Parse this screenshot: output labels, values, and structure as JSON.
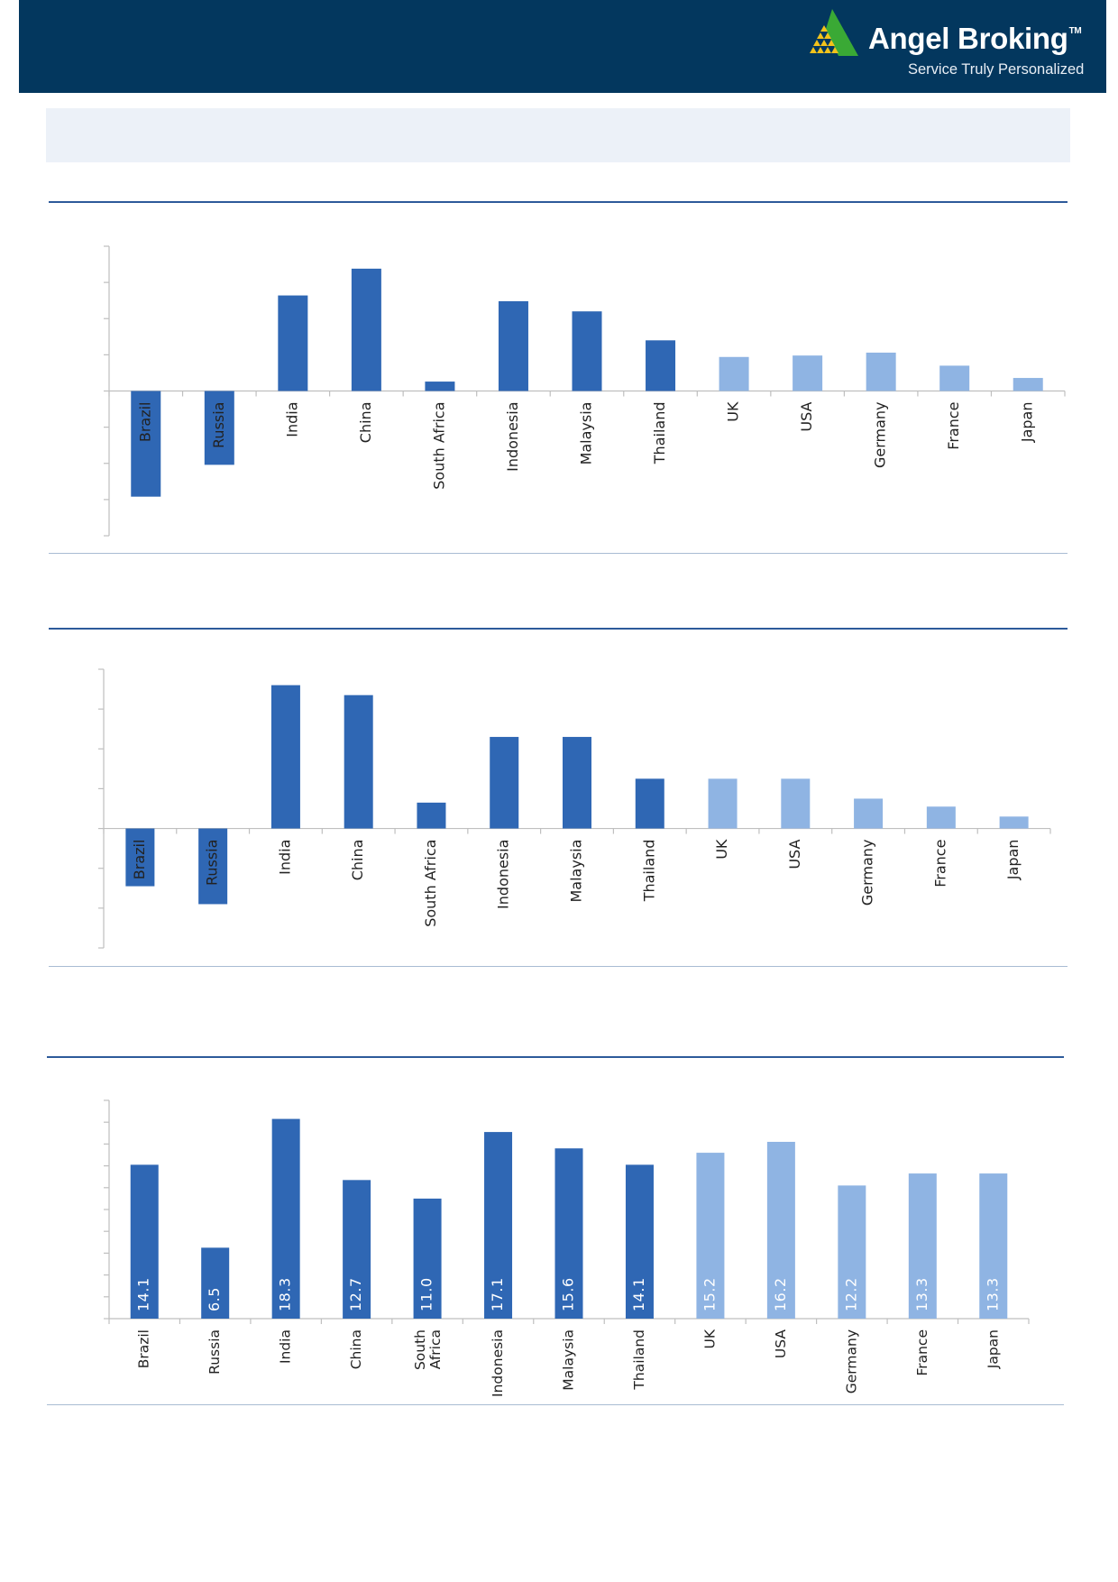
{
  "header": {
    "brand_name": "Angel Broking",
    "trademark": "TM",
    "tagline": "Service Truly Personalized",
    "background_color": "#03375e",
    "logo_icon": "pyramid-triangle-icon",
    "logo_colors": {
      "green": "#3aa935",
      "yellow": "#f2c21b"
    }
  },
  "colors": {
    "emerging": "#2f67b4",
    "developed": "#8fb4e3",
    "axis": "#bfbfbf",
    "label": "#222222",
    "value_label": "#ffffff"
  },
  "chart_data": [
    {
      "type": "bar",
      "categories": [
        "Brazil",
        "Russia",
        "India",
        "China",
        "South Africa",
        "Indonesia",
        "Malaysia",
        "Thailand",
        "UK",
        "USA",
        "Germany",
        "France",
        "Japan"
      ],
      "groups": [
        "emerging",
        "emerging",
        "emerging",
        "emerging",
        "emerging",
        "emerging",
        "emerging",
        "emerging",
        "developed",
        "developed",
        "developed",
        "developed",
        "developed"
      ],
      "values": [
        -14.6,
        -10.2,
        13.2,
        16.9,
        1.3,
        12.4,
        11.0,
        7.0,
        4.7,
        4.9,
        5.3,
        3.5,
        1.8
      ],
      "ylim": [
        -20,
        20
      ],
      "yticks": 9,
      "value_labels": false,
      "label_position": "axis"
    },
    {
      "type": "bar",
      "categories": [
        "Brazil",
        "Russia",
        "India",
        "China",
        "South Africa",
        "Indonesia",
        "Malaysia",
        "Thailand",
        "UK",
        "USA",
        "Germany",
        "France",
        "Japan"
      ],
      "groups": [
        "emerging",
        "emerging",
        "emerging",
        "emerging",
        "emerging",
        "emerging",
        "emerging",
        "emerging",
        "developed",
        "developed",
        "developed",
        "developed",
        "developed"
      ],
      "values": [
        -2.9,
        -3.8,
        7.2,
        6.7,
        1.3,
        4.6,
        4.6,
        2.5,
        2.5,
        2.5,
        1.5,
        1.1,
        0.6
      ],
      "ylim": [
        -6,
        8
      ],
      "yticks": 8,
      "value_labels": false,
      "label_position": "axis"
    },
    {
      "type": "bar",
      "categories": [
        "Brazil",
        "Russia",
        "India",
        "China",
        "South\nAfrica",
        "Indonesia",
        "Malaysia",
        "Thailand",
        "UK",
        "USA",
        "Germany",
        "France",
        "Japan"
      ],
      "groups": [
        "emerging",
        "emerging",
        "emerging",
        "emerging",
        "emerging",
        "emerging",
        "emerging",
        "emerging",
        "developed",
        "developed",
        "developed",
        "developed",
        "developed"
      ],
      "values": [
        14.1,
        6.5,
        18.3,
        12.7,
        11.0,
        17.1,
        15.6,
        14.1,
        15.2,
        16.2,
        12.2,
        13.3,
        13.3
      ],
      "value_text": [
        "14.1",
        "6.5",
        "18.3",
        "12.7",
        "11.0",
        "17.1",
        "15.6",
        "14.1",
        "15.2",
        "16.2",
        "12.2",
        "13.3",
        "13.3"
      ],
      "ylim": [
        0,
        20
      ],
      "yticks": 11,
      "value_labels": true,
      "label_position": "bottom"
    }
  ]
}
